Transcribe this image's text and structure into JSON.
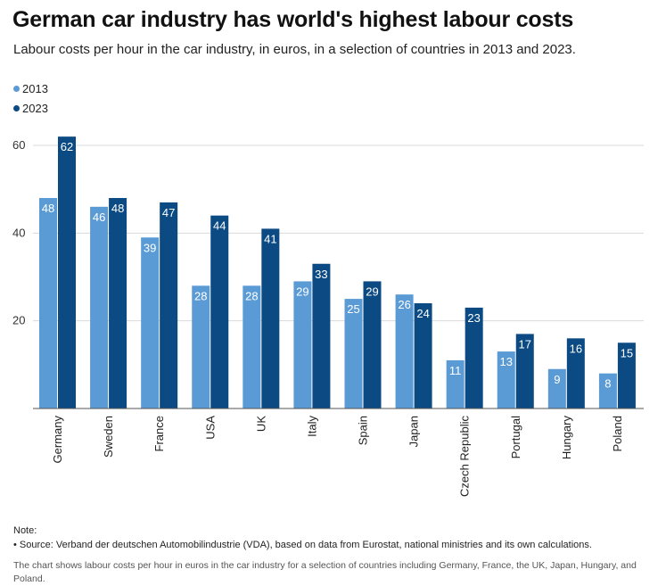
{
  "title": "German car industry has world's highest labour costs",
  "subtitle": "Labour costs per hour in the car industry, in euros, in a selection of countries in 2013 and 2023.",
  "note_label": "Note:",
  "note_source": "• Source: Verband der deutschen Automobilindustrie (VDA), based on data from Eurostat, national ministries and its own calculations.",
  "description": "The chart shows labour costs per hour in euros in the car industry for a selection of countries including Germany, France, the UK, Japan, Hungary, and Poland.",
  "colors": {
    "series_2013": "#5b9bd5",
    "series_2023": "#0b4a82"
  },
  "chart_data": {
    "type": "bar",
    "title": "German car industry has world's highest labour costs",
    "categories": [
      "Germany",
      "Sweden",
      "France",
      "USA",
      "UK",
      "Italy",
      "Spain",
      "Japan",
      "Czech Republic",
      "Portugal",
      "Hungary",
      "Poland"
    ],
    "series": [
      {
        "name": "2013",
        "color": "#5b9bd5",
        "values": [
          48,
          46,
          39,
          28,
          28,
          29,
          25,
          26,
          11,
          13,
          9,
          8
        ]
      },
      {
        "name": "2023",
        "color": "#0b4a82",
        "values": [
          62,
          48,
          47,
          44,
          41,
          33,
          29,
          24,
          23,
          17,
          16,
          15
        ]
      }
    ],
    "yticks": [
      20,
      40,
      60
    ],
    "ylim": [
      0,
      60
    ],
    "grid": true,
    "legend": "top-left"
  }
}
